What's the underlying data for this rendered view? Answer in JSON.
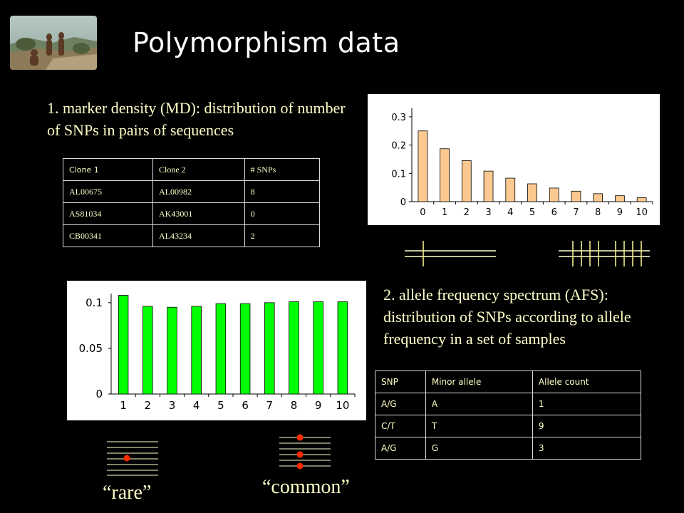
{
  "slide": {
    "title": "Polymorphism data",
    "md_text": "1. marker density (MD): distribution of number of SNPs in pairs of sequences",
    "afs_text": "2. allele frequency spectrum (AFS): distribution of SNPs according to allele frequency in a set of samples",
    "rare_label": "“rare”",
    "common_label": "“common”"
  },
  "clone_table": {
    "headers": [
      "Clone 1",
      "Clone 2",
      "# SNPs"
    ],
    "rows": [
      [
        "AL00675",
        "AL00982",
        "8"
      ],
      [
        "AS81034",
        "AK43001",
        "0"
      ],
      [
        "CB00341",
        "AL43234",
        "2"
      ]
    ]
  },
  "snp_table": {
    "headers": [
      "SNP",
      "Minor allele",
      "Allele count"
    ],
    "rows": [
      [
        "A/G",
        "A",
        "1"
      ],
      [
        "C/T",
        "T",
        "9"
      ],
      [
        "A/G",
        "G",
        "3"
      ]
    ]
  },
  "colors": {
    "background": "#000000",
    "text_light": "#ffffc8",
    "md_bar": "#fbc98f",
    "afs_bar": "#00ff00",
    "line_yellow": "#ffff99",
    "dot_red": "#ff2a00"
  },
  "chart_data": [
    {
      "type": "bar",
      "name": "md",
      "categories": [
        "0",
        "1",
        "2",
        "3",
        "4",
        "5",
        "6",
        "7",
        "8",
        "9",
        "10"
      ],
      "values": [
        0.25,
        0.187,
        0.145,
        0.108,
        0.083,
        0.063,
        0.048,
        0.037,
        0.028,
        0.021,
        0.014
      ],
      "yticks": [
        "0",
        "0.1",
        "0.2",
        "0.3"
      ],
      "ylim": [
        0,
        0.33
      ],
      "grid": false,
      "bar_color": "#fbc98f"
    },
    {
      "type": "bar",
      "name": "afs",
      "categories": [
        "1",
        "2",
        "3",
        "4",
        "5",
        "6",
        "7",
        "8",
        "9",
        "10"
      ],
      "values": [
        0.108,
        0.096,
        0.095,
        0.096,
        0.099,
        0.099,
        0.1,
        0.101,
        0.101,
        0.101
      ],
      "yticks": [
        "0",
        "0.05",
        "0.1"
      ],
      "ylim": [
        0,
        0.11
      ],
      "grid": false,
      "bar_color": "#00ff00"
    }
  ]
}
